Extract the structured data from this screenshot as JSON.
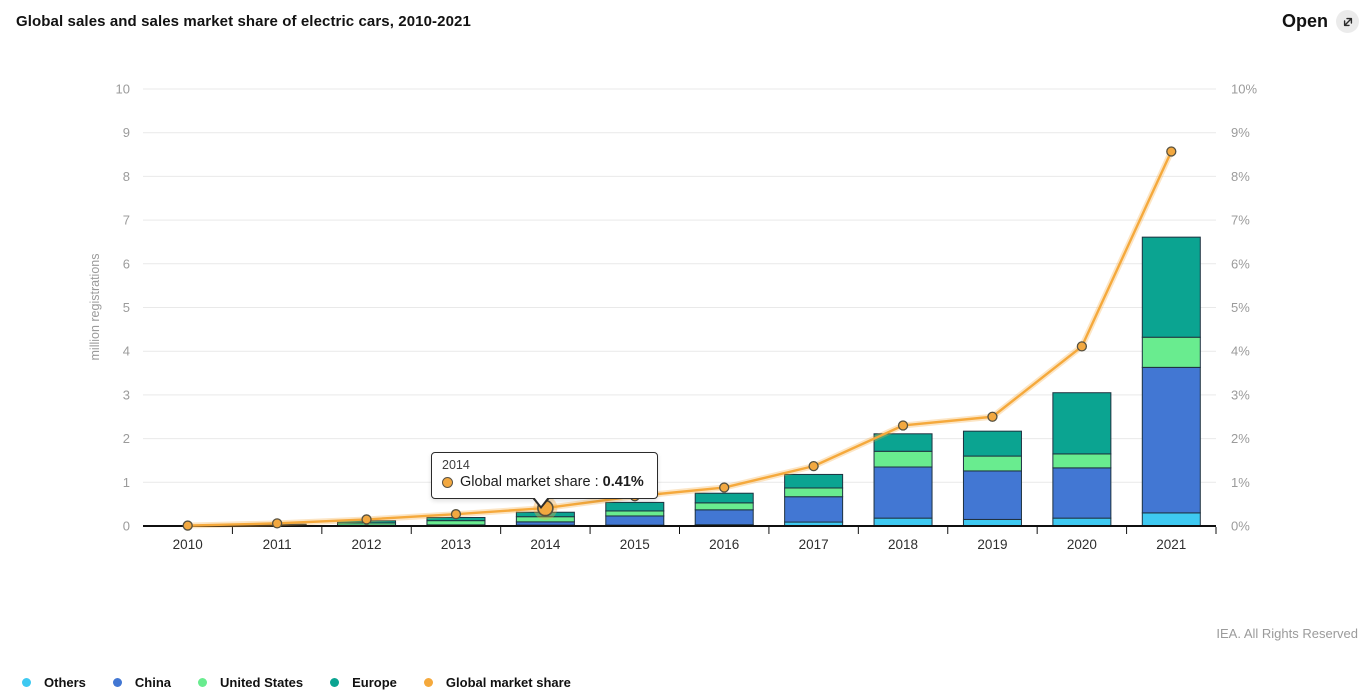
{
  "header": {
    "title": "Global sales and sales market share of electric cars, 2010-2021",
    "open_label": "Open"
  },
  "chart_data": {
    "type": "bar",
    "subtype": "stacked-column-with-line",
    "title": "Global sales and sales market share of electric cars, 2010-2021",
    "categories": [
      "2010",
      "2011",
      "2012",
      "2013",
      "2014",
      "2015",
      "2016",
      "2017",
      "2018",
      "2019",
      "2020",
      "2021"
    ],
    "series": [
      {
        "name": "Others",
        "color": "#3EC9F1",
        "values": [
          0.001,
          0.004,
          0.005,
          0.01,
          0.02,
          0.02,
          0.03,
          0.09,
          0.18,
          0.15,
          0.18,
          0.3
        ]
      },
      {
        "name": "China",
        "color": "#4277D3",
        "values": [
          0.002,
          0.006,
          0.012,
          0.016,
          0.075,
          0.21,
          0.34,
          0.58,
          1.17,
          1.11,
          1.15,
          3.33
        ]
      },
      {
        "name": "United States",
        "color": "#69EC8F",
        "values": [
          0.002,
          0.018,
          0.053,
          0.097,
          0.118,
          0.115,
          0.16,
          0.2,
          0.36,
          0.34,
          0.32,
          0.69
        ]
      },
      {
        "name": "Europe",
        "color": "#0BA491",
        "values": [
          0.002,
          0.012,
          0.05,
          0.072,
          0.102,
          0.195,
          0.22,
          0.31,
          0.4,
          0.57,
          1.4,
          2.29
        ]
      }
    ],
    "line_series": {
      "name": "Global market share",
      "color": "#F5A93C",
      "axis": "right",
      "values": [
        0.01,
        0.06,
        0.15,
        0.27,
        0.41,
        0.68,
        0.88,
        1.37,
        2.3,
        2.5,
        4.11,
        8.57
      ]
    },
    "left_axis": {
      "title": "million registrations",
      "min": 0,
      "max": 10,
      "step": 1
    },
    "right_axis": {
      "min": 0,
      "max": 10,
      "step": 1,
      "unit": "%"
    },
    "highlight_category": "2014",
    "grid": "horizontal",
    "legend_position": "bottom-left"
  },
  "tooltip": {
    "title": "2014",
    "series_label": "Global market share",
    "separator": " : ",
    "value": "0.41%",
    "dot_color": "#F2A840"
  },
  "legend": {
    "items": [
      {
        "label": "Others",
        "color": "#3EC9F1"
      },
      {
        "label": "China",
        "color": "#4277D3"
      },
      {
        "label": "United States",
        "color": "#69EC8F"
      },
      {
        "label": "Europe",
        "color": "#0BA491"
      },
      {
        "label": "Global market share",
        "color": "#F5A93C"
      }
    ]
  },
  "footer": {
    "copyright": "IEA. All Rights Reserved"
  },
  "colors": {
    "bar_stroke": "#1E3240",
    "gridline": "#E9E9E9",
    "axis_line": "#101010",
    "axis_tick_text": "#9B9B9B",
    "year_text": "#2E2E2E",
    "marker_fill": "#F2A840",
    "marker_stroke": "#55503F"
  }
}
